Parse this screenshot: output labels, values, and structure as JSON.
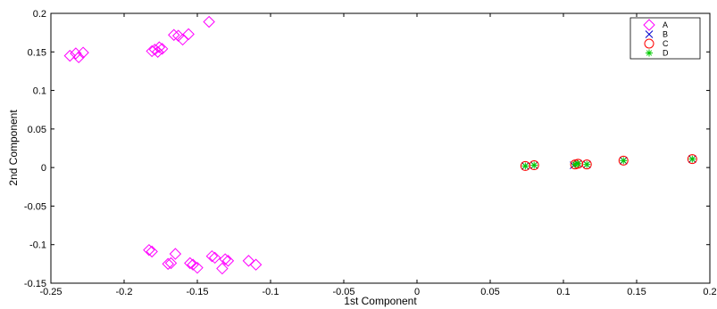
{
  "chart_data": {
    "type": "scatter",
    "title": "",
    "xlabel": "1st Component",
    "ylabel": "2nd Component",
    "xlim": [
      -0.25,
      0.2
    ],
    "ylim": [
      -0.15,
      0.2
    ],
    "xticks": [
      -0.25,
      -0.2,
      -0.15,
      -0.1,
      -0.05,
      0,
      0.05,
      0.1,
      0.15,
      0.2
    ],
    "xtick_labels": [
      "-0.25",
      "-0.2",
      "-0.15",
      "-0.1",
      "-0.05",
      "0",
      "0.05",
      "0.1",
      "0.15",
      "0.2"
    ],
    "yticks": [
      -0.15,
      -0.1,
      -0.05,
      0,
      0.05,
      0.1,
      0.15,
      0.2
    ],
    "ytick_labels": [
      "-0.15",
      "-0.1",
      "-0.05",
      "0",
      "0.05",
      "0.1",
      "0.15",
      "0.2"
    ],
    "grid": false,
    "legend_position": "top-right",
    "series": [
      {
        "name": "A",
        "marker": "diamond",
        "color": "#ff00ff",
        "points": [
          [
            -0.237,
            0.145
          ],
          [
            -0.233,
            0.148
          ],
          [
            -0.231,
            0.143
          ],
          [
            -0.228,
            0.149
          ],
          [
            -0.181,
            0.151
          ],
          [
            -0.179,
            0.153
          ],
          [
            -0.177,
            0.15
          ],
          [
            -0.176,
            0.156
          ],
          [
            -0.174,
            0.154
          ],
          [
            -0.166,
            0.172
          ],
          [
            -0.163,
            0.171
          ],
          [
            -0.16,
            0.166
          ],
          [
            -0.156,
            0.173
          ],
          [
            -0.142,
            0.189
          ],
          [
            -0.183,
            -0.107
          ],
          [
            -0.181,
            -0.109
          ],
          [
            -0.17,
            -0.125
          ],
          [
            -0.168,
            -0.124
          ],
          [
            -0.165,
            -0.112
          ],
          [
            -0.155,
            -0.124
          ],
          [
            -0.153,
            -0.126
          ],
          [
            -0.15,
            -0.13
          ],
          [
            -0.14,
            -0.115
          ],
          [
            -0.138,
            -0.117
          ],
          [
            -0.133,
            -0.131
          ],
          [
            -0.131,
            -0.119
          ],
          [
            -0.129,
            -0.121
          ],
          [
            -0.115,
            -0.121
          ],
          [
            -0.11,
            -0.126
          ]
        ]
      },
      {
        "name": "B",
        "marker": "x",
        "color": "#0000cc",
        "points": [
          [
            0.074,
            0.002
          ],
          [
            0.08,
            0.003
          ],
          [
            0.107,
            0.003
          ],
          [
            0.11,
            0.005
          ],
          [
            0.116,
            0.004
          ],
          [
            0.141,
            0.009
          ],
          [
            0.188,
            0.011
          ]
        ]
      },
      {
        "name": "C",
        "marker": "circle",
        "color": "#ff0000",
        "points": [
          [
            0.074,
            0.002
          ],
          [
            0.08,
            0.003
          ],
          [
            0.108,
            0.004
          ],
          [
            0.11,
            0.005
          ],
          [
            0.116,
            0.004
          ],
          [
            0.141,
            0.009
          ],
          [
            0.188,
            0.011
          ]
        ]
      },
      {
        "name": "D",
        "marker": "asterisk",
        "color": "#00cc00",
        "points": [
          [
            0.074,
            0.002
          ],
          [
            0.08,
            0.003
          ],
          [
            0.108,
            0.004
          ],
          [
            0.11,
            0.005
          ],
          [
            0.116,
            0.004
          ],
          [
            0.141,
            0.009
          ],
          [
            0.188,
            0.011
          ]
        ]
      }
    ]
  }
}
